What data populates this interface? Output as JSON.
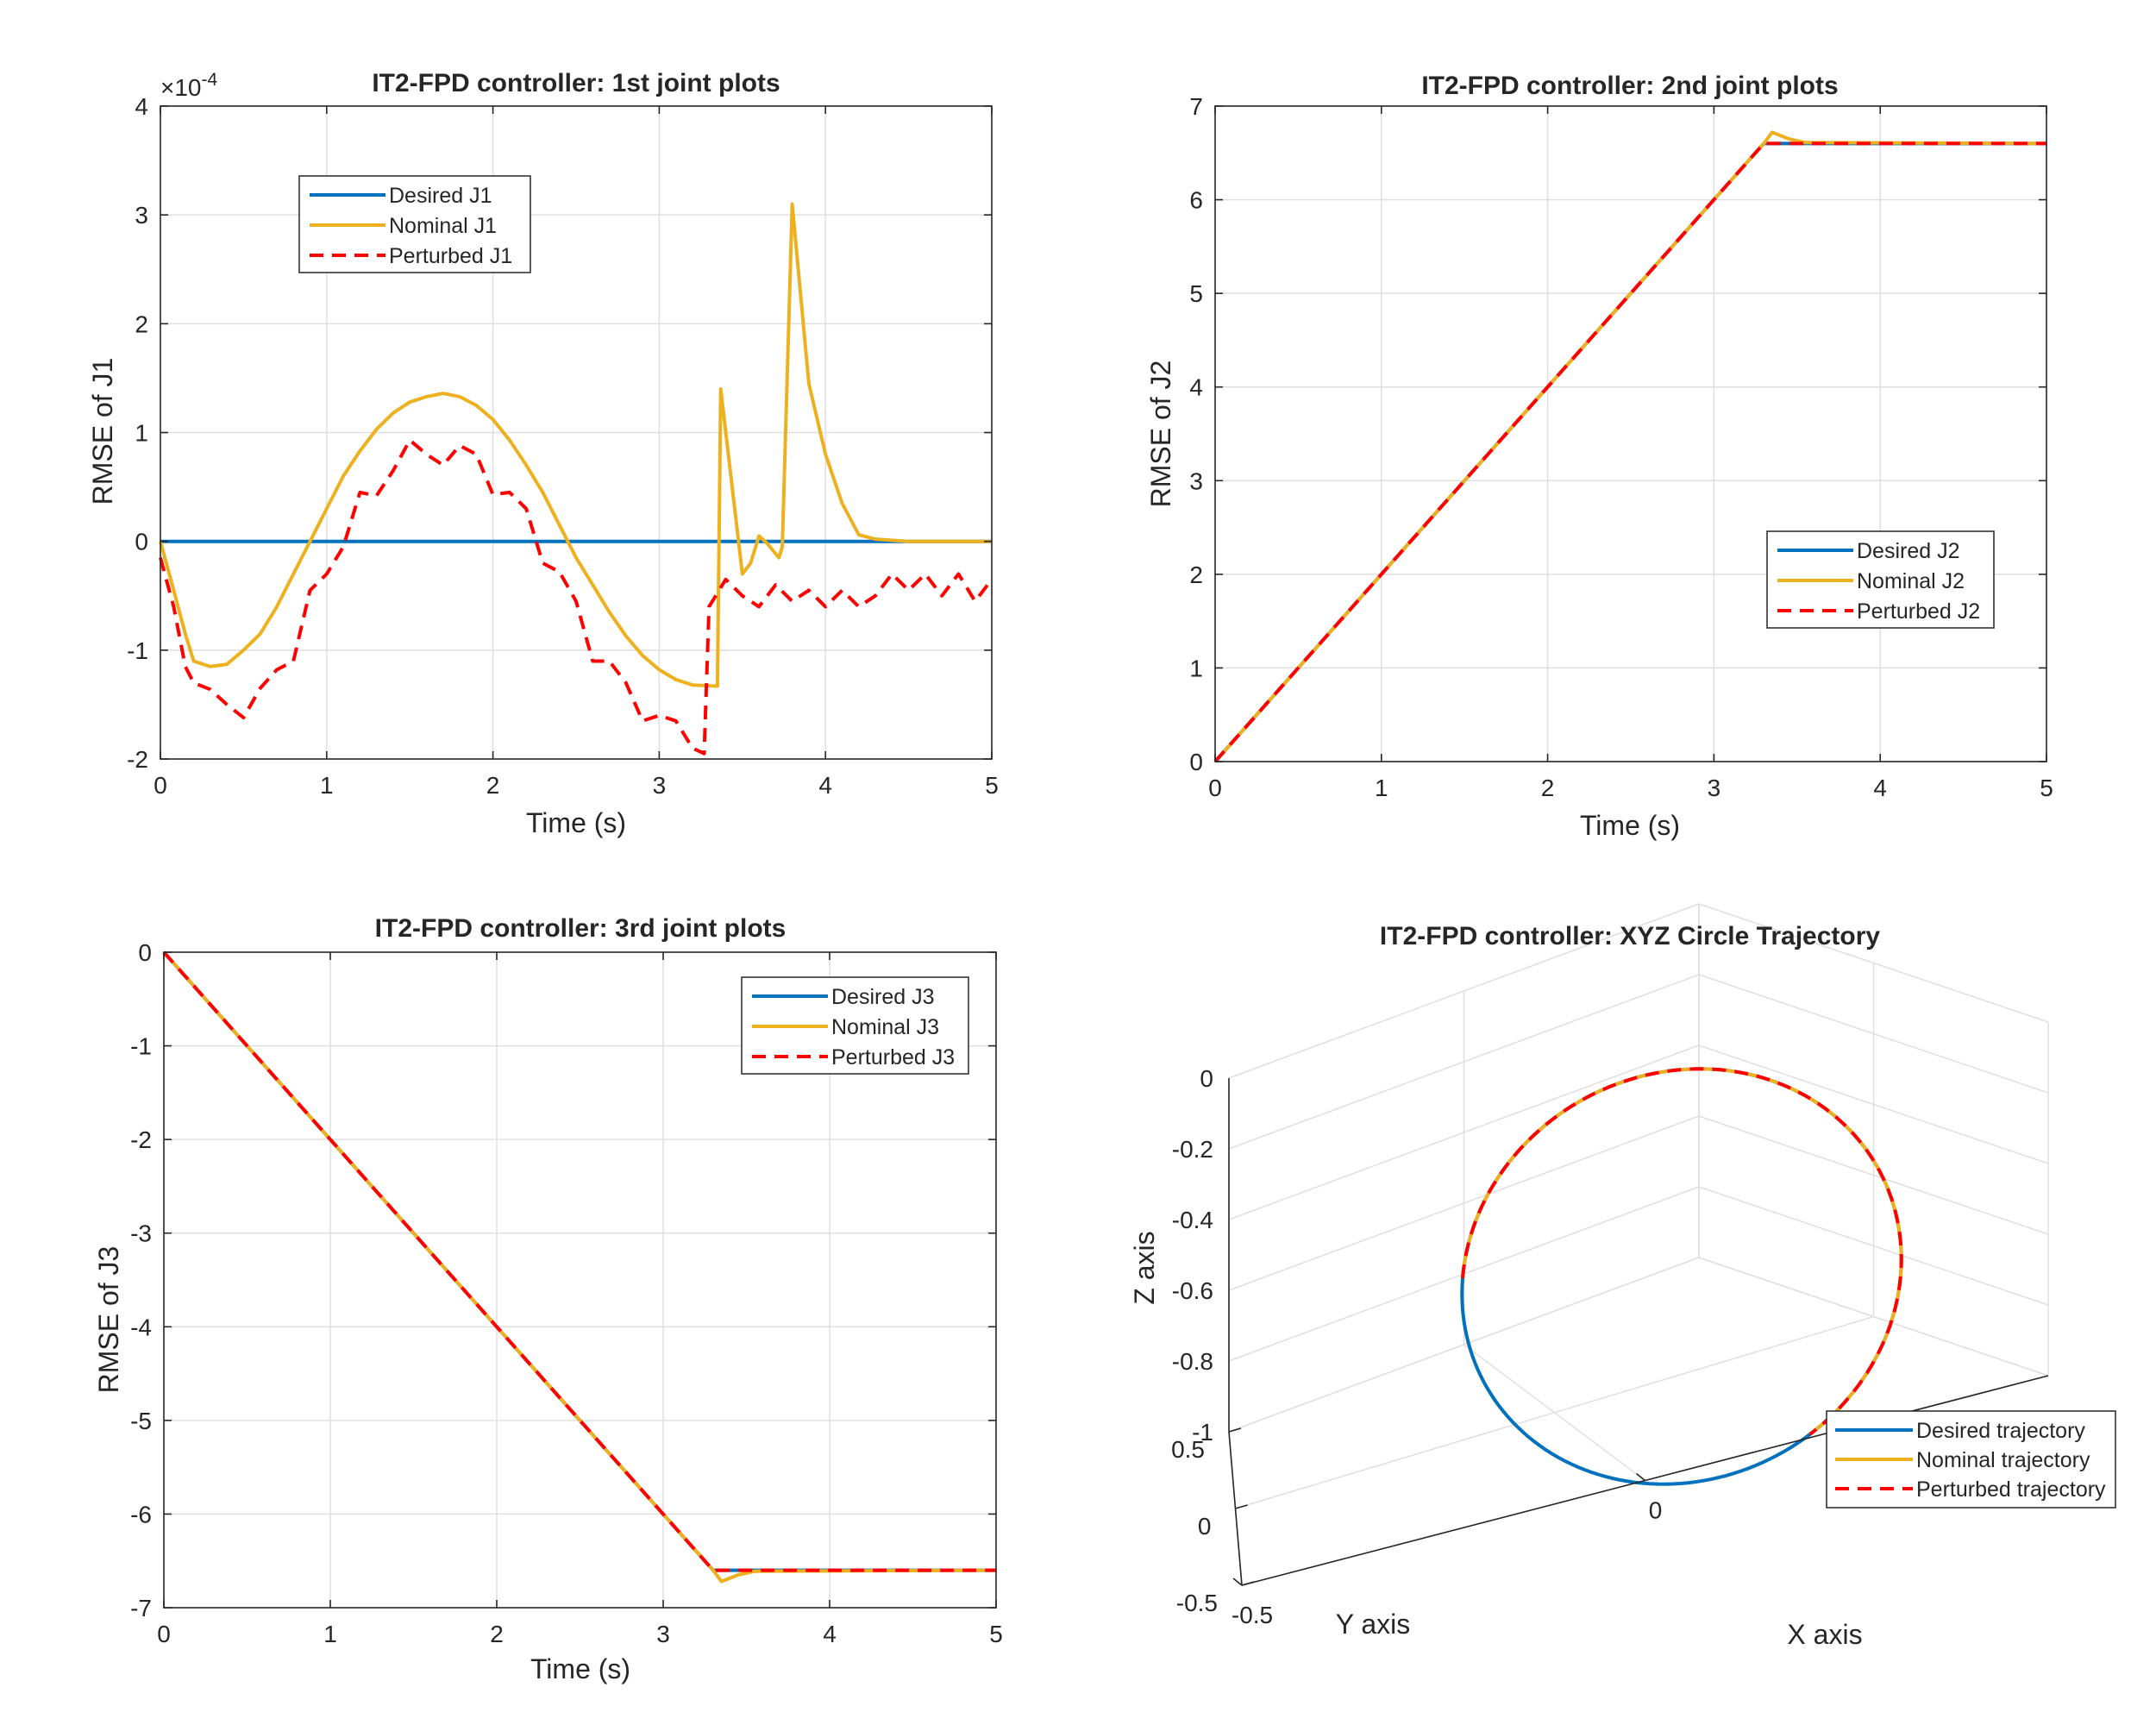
{
  "colors": {
    "desired": "#0072BD",
    "nominal": "#EDB120",
    "perturbed": "#FF0000"
  },
  "chart_data": [
    {
      "type": "line",
      "title": "IT2-FPD controller: 1st joint plots",
      "xlabel": "Time (s)",
      "ylabel": "RMSE of J1",
      "exponent_label": "×10",
      "exponent_power": "-4",
      "xlim": [
        0,
        5
      ],
      "ylim": [
        -2,
        4
      ],
      "xticks": [
        0,
        1,
        2,
        3,
        4,
        5
      ],
      "yticks": [
        -2,
        -1,
        0,
        1,
        2,
        3,
        4
      ],
      "grid": true,
      "legend_position": "upper-left",
      "series": [
        {
          "name": "Desired J1",
          "style": "solid",
          "color_key": "desired",
          "points": [
            [
              0,
              0
            ],
            [
              5,
              0
            ]
          ]
        },
        {
          "name": "Nominal J1",
          "style": "solid",
          "color_key": "nominal",
          "points": [
            [
              0,
              0
            ],
            [
              0.08,
              -0.45
            ],
            [
              0.15,
              -0.85
            ],
            [
              0.2,
              -1.1
            ],
            [
              0.3,
              -1.15
            ],
            [
              0.4,
              -1.13
            ],
            [
              0.5,
              -1.0
            ],
            [
              0.6,
              -0.85
            ],
            [
              0.7,
              -0.6
            ],
            [
              0.8,
              -0.3
            ],
            [
              0.9,
              0.0
            ],
            [
              1.0,
              0.3
            ],
            [
              1.1,
              0.6
            ],
            [
              1.2,
              0.83
            ],
            [
              1.3,
              1.03
            ],
            [
              1.4,
              1.18
            ],
            [
              1.5,
              1.28
            ],
            [
              1.6,
              1.33
            ],
            [
              1.7,
              1.36
            ],
            [
              1.8,
              1.33
            ],
            [
              1.9,
              1.25
            ],
            [
              2.0,
              1.12
            ],
            [
              2.1,
              0.93
            ],
            [
              2.2,
              0.7
            ],
            [
              2.3,
              0.45
            ],
            [
              2.4,
              0.15
            ],
            [
              2.5,
              -0.15
            ],
            [
              2.6,
              -0.4
            ],
            [
              2.7,
              -0.65
            ],
            [
              2.8,
              -0.87
            ],
            [
              2.9,
              -1.05
            ],
            [
              3.0,
              -1.18
            ],
            [
              3.1,
              -1.27
            ],
            [
              3.2,
              -1.32
            ],
            [
              3.35,
              -1.33
            ],
            [
              3.37,
              1.4
            ],
            [
              3.5,
              -0.3
            ],
            [
              3.55,
              -0.2
            ],
            [
              3.6,
              0.05
            ],
            [
              3.65,
              -0.02
            ],
            [
              3.72,
              -0.15
            ],
            [
              3.74,
              -0.05
            ],
            [
              3.8,
              3.1
            ],
            [
              3.9,
              1.45
            ],
            [
              4.0,
              0.8
            ],
            [
              4.1,
              0.35
            ],
            [
              4.2,
              0.06
            ],
            [
              4.3,
              0.02
            ],
            [
              4.5,
              0
            ],
            [
              5,
              0
            ]
          ]
        },
        {
          "name": "Perturbed J1",
          "style": "dashed",
          "color_key": "perturbed",
          "points": [
            [
              0,
              -0.15
            ],
            [
              0.08,
              -0.6
            ],
            [
              0.15,
              -1.15
            ],
            [
              0.2,
              -1.3
            ],
            [
              0.3,
              -1.36
            ],
            [
              0.4,
              -1.5
            ],
            [
              0.5,
              -1.62
            ],
            [
              0.6,
              -1.35
            ],
            [
              0.7,
              -1.18
            ],
            [
              0.8,
              -1.1
            ],
            [
              0.9,
              -0.45
            ],
            [
              1.0,
              -0.3
            ],
            [
              1.1,
              -0.05
            ],
            [
              1.2,
              0.45
            ],
            [
              1.3,
              0.42
            ],
            [
              1.4,
              0.65
            ],
            [
              1.5,
              0.93
            ],
            [
              1.6,
              0.8
            ],
            [
              1.7,
              0.7
            ],
            [
              1.8,
              0.88
            ],
            [
              1.9,
              0.8
            ],
            [
              2.0,
              0.43
            ],
            [
              2.1,
              0.45
            ],
            [
              2.2,
              0.3
            ],
            [
              2.3,
              -0.2
            ],
            [
              2.4,
              -0.28
            ],
            [
              2.5,
              -0.55
            ],
            [
              2.6,
              -1.1
            ],
            [
              2.7,
              -1.1
            ],
            [
              2.8,
              -1.3
            ],
            [
              2.9,
              -1.65
            ],
            [
              3.0,
              -1.6
            ],
            [
              3.1,
              -1.65
            ],
            [
              3.2,
              -1.9
            ],
            [
              3.27,
              -1.95
            ],
            [
              3.3,
              -0.6
            ],
            [
              3.4,
              -0.35
            ],
            [
              3.5,
              -0.5
            ],
            [
              3.6,
              -0.6
            ],
            [
              3.7,
              -0.4
            ],
            [
              3.8,
              -0.55
            ],
            [
              3.9,
              -0.45
            ],
            [
              4.0,
              -0.6
            ],
            [
              4.1,
              -0.45
            ],
            [
              4.2,
              -0.6
            ],
            [
              4.3,
              -0.5
            ],
            [
              4.4,
              -0.3
            ],
            [
              4.5,
              -0.45
            ],
            [
              4.6,
              -0.3
            ],
            [
              4.7,
              -0.5
            ],
            [
              4.8,
              -0.3
            ],
            [
              4.9,
              -0.55
            ],
            [
              5.0,
              -0.35
            ]
          ]
        }
      ]
    },
    {
      "type": "line",
      "title": "IT2-FPD controller: 2nd joint plots",
      "xlabel": "Time (s)",
      "ylabel": "RMSE of J2",
      "xlim": [
        0,
        5
      ],
      "ylim": [
        0,
        7
      ],
      "xticks": [
        0,
        1,
        2,
        3,
        4,
        5
      ],
      "yticks": [
        0,
        1,
        2,
        3,
        4,
        5,
        6,
        7
      ],
      "grid": true,
      "legend_position": "lower-right",
      "series": [
        {
          "name": "Desired J2",
          "style": "solid",
          "color_key": "desired",
          "points": [
            [
              0,
              0
            ],
            [
              3.3,
              6.6
            ],
            [
              5,
              6.6
            ]
          ]
        },
        {
          "name": "Nominal J2",
          "style": "solid",
          "color_key": "nominal",
          "points": [
            [
              0,
              0
            ],
            [
              3.3,
              6.6
            ],
            [
              3.35,
              6.72
            ],
            [
              3.45,
              6.65
            ],
            [
              3.55,
              6.61
            ],
            [
              5,
              6.6
            ]
          ]
        },
        {
          "name": "Perturbed J2",
          "style": "dashed",
          "color_key": "perturbed",
          "points": [
            [
              0,
              0
            ],
            [
              3.3,
              6.6
            ],
            [
              5,
              6.6
            ]
          ]
        }
      ]
    },
    {
      "type": "line",
      "title": "IT2-FPD controller: 3rd joint plots",
      "xlabel": "Time (s)",
      "ylabel": "RMSE of J3",
      "xlim": [
        0,
        5
      ],
      "ylim": [
        -7,
        0
      ],
      "xticks": [
        0,
        1,
        2,
        3,
        4,
        5
      ],
      "yticks": [
        -7,
        -6,
        -5,
        -4,
        -3,
        -2,
        -1,
        0
      ],
      "grid": true,
      "legend_position": "upper-right",
      "series": [
        {
          "name": "Desired J3",
          "style": "solid",
          "color_key": "desired",
          "points": [
            [
              0,
              0
            ],
            [
              3.3,
              -6.6
            ],
            [
              5,
              -6.6
            ]
          ]
        },
        {
          "name": "Nominal J3",
          "style": "solid",
          "color_key": "nominal",
          "points": [
            [
              0,
              0
            ],
            [
              3.3,
              -6.6
            ],
            [
              3.35,
              -6.72
            ],
            [
              3.45,
              -6.65
            ],
            [
              3.55,
              -6.61
            ],
            [
              5,
              -6.6
            ]
          ]
        },
        {
          "name": "Perturbed J3",
          "style": "dashed",
          "color_key": "perturbed",
          "points": [
            [
              0,
              0
            ],
            [
              3.3,
              -6.6
            ],
            [
              5,
              -6.6
            ]
          ]
        }
      ]
    },
    {
      "type": "line",
      "subtype": "3d",
      "title": "IT2-FPD controller: XYZ Circle Trajectory",
      "xlabel": "X axis",
      "ylabel": "Y axis",
      "zlabel": "Z axis",
      "xticks": [
        -0.5,
        0
      ],
      "yticks": [
        -0.5,
        0,
        0.5
      ],
      "zticks": [
        -1,
        -0.8,
        -0.6,
        -0.4,
        -0.2,
        0
      ],
      "xlim": [
        -0.5,
        0.5
      ],
      "ylim": [
        -0.5,
        0.5
      ],
      "zlim": [
        -1,
        0
      ],
      "grid": true,
      "legend_position": "lower-right",
      "series": [
        {
          "name": "Desired trajectory",
          "style": "solid",
          "color_key": "desired",
          "arc_degrees": [
            0,
            360
          ]
        },
        {
          "name": "Nominal trajectory",
          "style": "solid",
          "color_key": "nominal",
          "arc_degrees": [
            -150,
            80
          ]
        },
        {
          "name": "Perturbed trajectory",
          "style": "dashed",
          "color_key": "perturbed",
          "arc_degrees": [
            -150,
            80
          ]
        }
      ]
    }
  ]
}
